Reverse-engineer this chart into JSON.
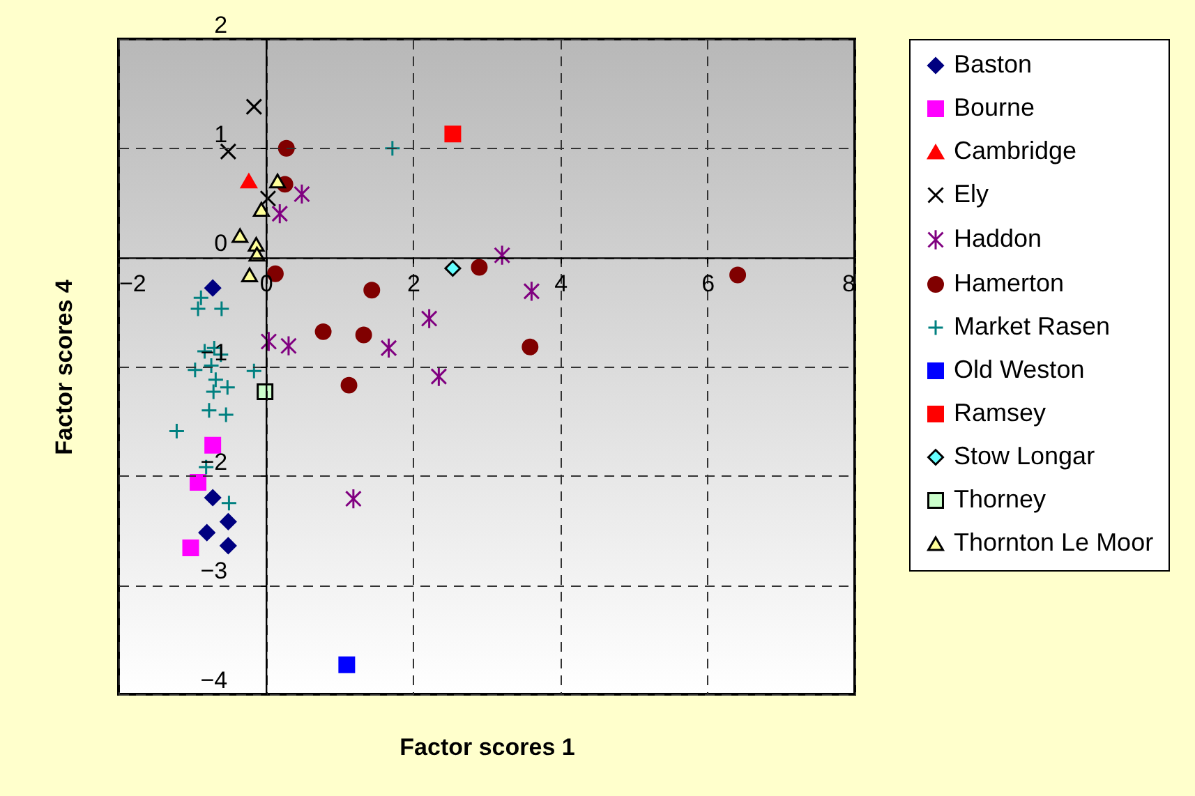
{
  "chart_data": {
    "type": "scatter",
    "xlabel": "Factor scores 1",
    "ylabel": "Factor scores 4",
    "xlim": [
      -2,
      8
    ],
    "xticks": [
      -2,
      0,
      2,
      4,
      6,
      8
    ],
    "ylim": [
      -4,
      2
    ],
    "yticks": [
      -4,
      -3,
      -2,
      -1,
      0,
      1,
      2
    ],
    "grid": true,
    "legend": "right",
    "series": [
      {
        "name": "Baston",
        "color": "#000080",
        "marker": "diamond",
        "x": [
          -0.72,
          -0.72,
          -0.51,
          -0.8,
          -0.51
        ],
        "values": [
          -0.28,
          -2.2,
          -2.42,
          -2.52,
          -2.64
        ]
      },
      {
        "name": "Bourne",
        "color": "#ff00ff",
        "marker": "square",
        "x": [
          -0.72,
          -0.92,
          -1.02
        ],
        "values": [
          -1.72,
          -2.06,
          -2.66
        ]
      },
      {
        "name": "Cambridge",
        "color": "#ff0000",
        "marker": "triangle",
        "x": [
          -0.23
        ],
        "values": [
          0.7
        ]
      },
      {
        "name": "Ely",
        "color": "#000000",
        "marker": "x",
        "x": [
          -0.16,
          -0.51,
          0.03
        ],
        "values": [
          1.38,
          0.97,
          0.54
        ]
      },
      {
        "name": "Haddon",
        "color": "#800080",
        "marker": "cross",
        "x": [
          0.49,
          0.19,
          3.21,
          3.61,
          2.22,
          0.04,
          0.31,
          1.67,
          2.35,
          1.19
        ],
        "values": [
          0.58,
          0.4,
          0.02,
          -0.31,
          -0.56,
          -0.77,
          -0.81,
          -0.83,
          -1.09,
          -2.21
        ]
      },
      {
        "name": "Hamerton",
        "color": "#800000",
        "marker": "circle",
        "x": [
          0.28,
          0.26,
          0.13,
          1.44,
          2.9,
          6.41,
          0.78,
          1.33,
          3.59,
          1.13
        ],
        "values": [
          1.0,
          0.67,
          -0.15,
          -0.3,
          -0.09,
          -0.16,
          -0.68,
          -0.71,
          -0.82,
          -1.17
        ]
      },
      {
        "name": "Market Rasen",
        "color": "#008080",
        "marker": "plus",
        "x": [
          1.72,
          -0.88,
          -0.92,
          -0.6,
          -0.7,
          -0.83,
          -0.61,
          -0.96,
          -0.74,
          -0.16,
          -0.68,
          -0.52,
          -0.71,
          -0.77,
          -0.54,
          -1.21,
          -0.81,
          -0.5
        ],
        "values": [
          1.0,
          -0.37,
          -0.47,
          -0.47,
          -0.83,
          -0.86,
          -0.89,
          -1.03,
          -0.99,
          -1.04,
          -1.12,
          -1.19,
          -1.23,
          -1.4,
          -1.44,
          -1.59,
          -1.92,
          -2.25
        ]
      },
      {
        "name": "Old Weston",
        "color": "#0000ff",
        "marker": "square",
        "x": [
          1.1
        ],
        "values": [
          -3.73
        ]
      },
      {
        "name": "Ramsey",
        "color": "#ff0000",
        "marker": "square",
        "x": [
          2.54
        ],
        "values": [
          1.13
        ]
      },
      {
        "name": "Stow Longar",
        "color": "#66ffff",
        "marker": "diamond",
        "x": [
          2.54
        ],
        "values": [
          -0.1
        ]
      },
      {
        "name": "Thorney",
        "color": "#ccffcc",
        "marker": "square",
        "x": [
          -0.01
        ],
        "values": [
          -1.23
        ]
      },
      {
        "name": "Thornton Le Moor",
        "color": "#ffff99",
        "marker": "triangle",
        "x": [
          0.16,
          -0.06,
          -0.35,
          -0.13,
          -0.12,
          -0.22
        ],
        "values": [
          0.7,
          0.44,
          0.2,
          0.12,
          0.03,
          -0.16
        ]
      }
    ]
  }
}
